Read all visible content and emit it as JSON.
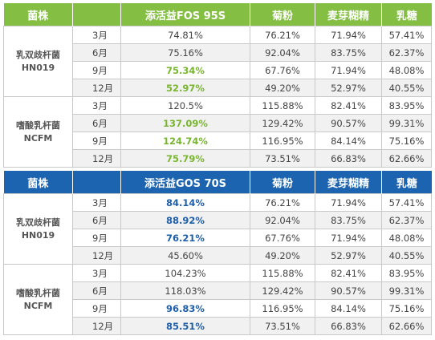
{
  "colors": {
    "green_header": "#84bf44",
    "blue_header": "#1d64b0",
    "green_highlight": "#7ab531",
    "blue_highlight": "#1f5fa8"
  },
  "table_fos": {
    "headers": [
      "菌株",
      "",
      "添活益FOS 95S",
      "菊粉",
      "麦芽糊精",
      "乳糖"
    ],
    "groups": [
      {
        "strain": [
          "乳双歧杆菌",
          "HN019"
        ],
        "rows": [
          {
            "month": "3月",
            "values": [
              "74.81%",
              "76.21%",
              "71.94%",
              "57.41%"
            ]
          },
          {
            "month": "6月",
            "values": [
              "75.16%",
              "92.04%",
              "83.75%",
              "62.37%"
            ]
          },
          {
            "month": "9月",
            "values": [
              "75.34%",
              "67.76%",
              "71.94%",
              "48.08%"
            ]
          },
          {
            "month": "12月",
            "values": [
              "52.97%",
              "49.20%",
              "52.97%",
              "40.55%"
            ]
          }
        ]
      },
      {
        "strain": [
          "嗜酸乳杆菌",
          "NCFM"
        ],
        "rows": [
          {
            "month": "3月",
            "values": [
              "120.5%",
              "115.88%",
              "82.41%",
              "83.95%"
            ]
          },
          {
            "month": "6月",
            "values": [
              "137.09%",
              "129.42%",
              "90.57%",
              "99.31%"
            ]
          },
          {
            "month": "9月",
            "values": [
              "124.74%",
              "116.95%",
              "84.14%",
              "75.16%"
            ]
          },
          {
            "month": "12月",
            "values": [
              "75.79%",
              "73.51%",
              "66.83%",
              "62.66%"
            ]
          }
        ]
      }
    ]
  },
  "table_gos": {
    "headers": [
      "菌株",
      "",
      "添活益GOS 70S",
      "菊粉",
      "麦芽糊精",
      "乳糖"
    ],
    "groups": [
      {
        "strain": [
          "乳双歧杆菌",
          "HN019"
        ],
        "rows": [
          {
            "month": "3月",
            "values": [
              "84.14%",
              "76.21%",
              "71.94%",
              "57.41%"
            ]
          },
          {
            "month": "6月",
            "values": [
              "88.92%",
              "92.04%",
              "83.75%",
              "62.37%"
            ]
          },
          {
            "month": "9月",
            "values": [
              "76.21%",
              "67.76%",
              "71.94%",
              "48.08%"
            ]
          },
          {
            "month": "12月",
            "values": [
              "45.60%",
              "49.20%",
              "52.97%",
              "40.55%"
            ]
          }
        ]
      },
      {
        "strain": [
          "嗜酸乳杆菌",
          "NCFM"
        ],
        "rows": [
          {
            "month": "3月",
            "values": [
              "104.23%",
              "115.88%",
              "82.41%",
              "83.95%"
            ]
          },
          {
            "month": "6月",
            "values": [
              "118.03%",
              "129.42%",
              "90.57%",
              "99.31%"
            ]
          },
          {
            "month": "9月",
            "values": [
              "96.83%",
              "116.95%",
              "84.14%",
              "75.16%"
            ]
          },
          {
            "month": "12月",
            "values": [
              "85.51%",
              "73.51%",
              "66.83%",
              "62.66%"
            ]
          }
        ]
      }
    ]
  }
}
